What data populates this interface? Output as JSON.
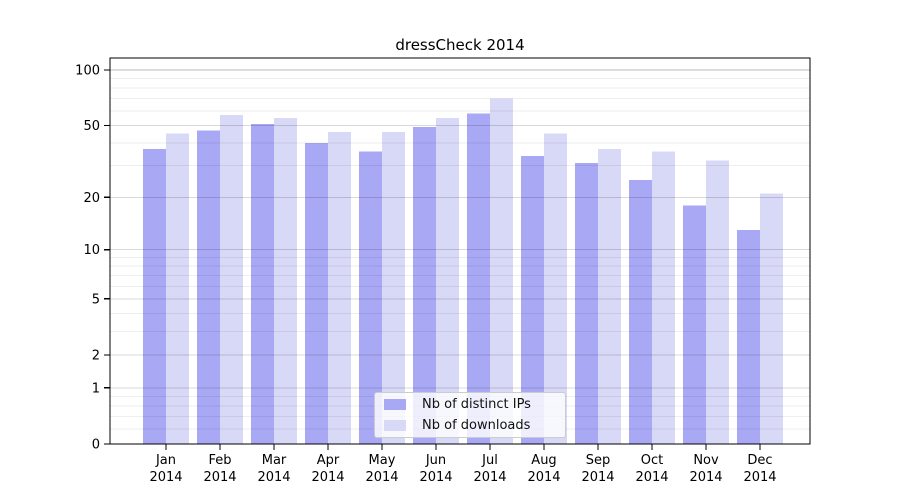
{
  "chart_data": {
    "type": "bar",
    "title": "dressCheck 2014",
    "year_label": "2014",
    "categories": [
      "Jan",
      "Feb",
      "Mar",
      "Apr",
      "May",
      "Jun",
      "Jul",
      "Aug",
      "Sep",
      "Oct",
      "Nov",
      "Dec"
    ],
    "series": [
      {
        "key": "distinct-ips",
        "name": "Nb of distinct IPs",
        "color": "#a8a8f5",
        "values": [
          37,
          47,
          51,
          40,
          36,
          49,
          58,
          34,
          31,
          25,
          18,
          13
        ]
      },
      {
        "key": "downloads",
        "name": "Nb of downloads",
        "color": "#d8d8f7",
        "values": [
          45,
          57,
          55,
          46,
          46,
          55,
          70,
          45,
          37,
          36,
          32,
          21
        ]
      }
    ],
    "yscale": "symlog",
    "ylim": [
      0,
      103
    ],
    "y_ticks_major": [
      0,
      1,
      2,
      5,
      10,
      20,
      50,
      100
    ],
    "y_ticks_minor": [
      0.2,
      0.4,
      0.6,
      0.8,
      3,
      4,
      6,
      7,
      8,
      9,
      30,
      40,
      60,
      70,
      80,
      90
    ],
    "grid": true,
    "legend_position": "lower center",
    "axis_color": "#000000",
    "background": "#ffffff"
  }
}
